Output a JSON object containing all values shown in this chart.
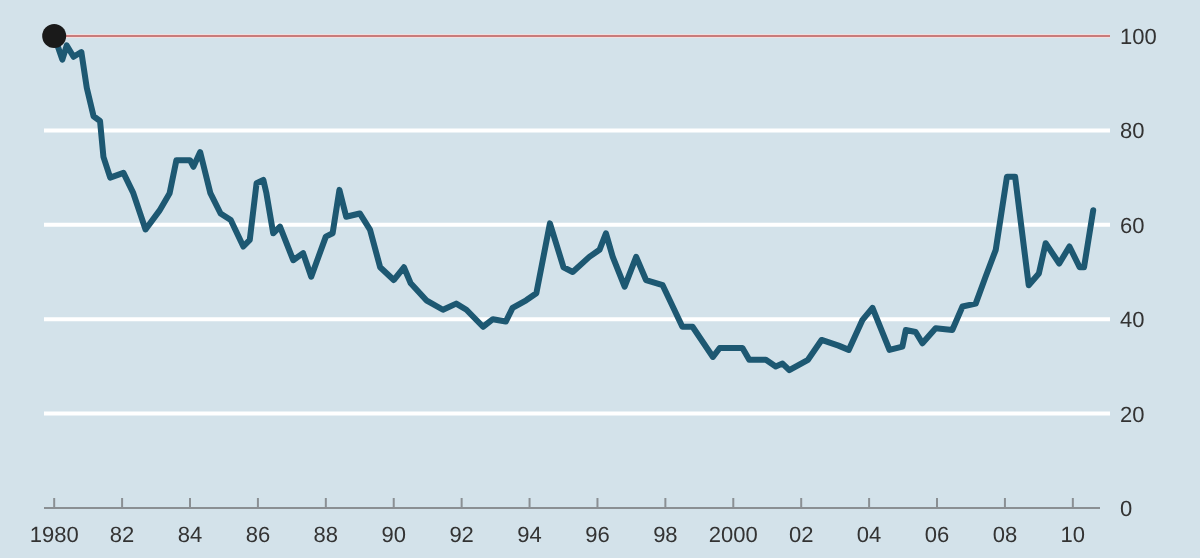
{
  "chart_data": {
    "type": "line",
    "x": [
      1980.0,
      1980.24,
      1980.37,
      1980.57,
      1980.8,
      1980.96,
      1981.16,
      1981.35,
      1981.45,
      1981.65,
      1982.04,
      1982.33,
      1982.69,
      1983.1,
      1983.4,
      1983.6,
      1984.0,
      1984.1,
      1984.3,
      1984.6,
      1984.9,
      1985.2,
      1985.57,
      1985.76,
      1985.96,
      1986.16,
      1986.25,
      1986.45,
      1986.65,
      1987.04,
      1987.33,
      1987.57,
      1988.0,
      1988.2,
      1988.4,
      1988.6,
      1989.0,
      1989.3,
      1989.6,
      1990.0,
      1990.3,
      1990.5,
      1990.96,
      1991.45,
      1991.84,
      1992.14,
      1992.63,
      1992.92,
      1993.3,
      1993.5,
      1993.9,
      1994.2,
      1994.6,
      1995.0,
      1995.27,
      1995.76,
      1996.06,
      1996.25,
      1996.45,
      1996.8,
      1997.14,
      1997.43,
      1997.92,
      1998.5,
      1998.8,
      1999.4,
      1999.6,
      2000.27,
      2000.47,
      2000.96,
      2001.25,
      2001.45,
      2001.65,
      2002.2,
      2002.6,
      2003.1,
      2003.4,
      2003.8,
      2004.1,
      2004.6,
      2004.98,
      2005.08,
      2005.37,
      2005.57,
      2005.96,
      2006.45,
      2006.75,
      2007.14,
      2007.43,
      2007.73,
      2008.06,
      2008.3,
      2008.7,
      2009.0,
      2009.2,
      2009.6,
      2009.9,
      2010.2,
      2010.33,
      2010.6
    ],
    "series": [
      {
        "color": "#1d5872",
        "values": [
          100,
          95,
          98,
          95.6,
          96.6,
          89,
          83,
          82,
          74.4,
          70,
          71,
          66.7,
          59,
          63,
          66.7,
          73.7,
          73.7,
          72.3,
          75.4,
          66.7,
          62.4,
          61,
          55.4,
          56.8,
          68.8,
          69.5,
          66.7,
          58.2,
          59.6,
          52.5,
          54,
          49,
          57.5,
          58.2,
          67.4,
          61.7,
          62.4,
          59,
          51,
          48.3,
          51,
          47.6,
          44,
          42,
          43.3,
          42,
          38.4,
          40,
          39.5,
          42.4,
          44,
          45.5,
          60.3,
          51,
          50,
          53.2,
          54.7,
          58.2,
          53.2,
          46.9,
          53.2,
          48.3,
          47.2,
          38.4,
          38.4,
          32,
          33.9,
          33.9,
          31.4,
          31.4,
          30,
          30.6,
          29.2,
          31.4,
          35.6,
          34.4,
          33.5,
          39.8,
          42.4,
          33.5,
          34.2,
          37.7,
          37.3,
          34.9,
          38.1,
          37.7,
          42.7,
          43.3,
          49,
          54.7,
          70.2,
          70.2,
          47.2,
          49.7,
          56.1,
          51.8,
          55.4,
          51,
          51,
          63.1
        ]
      },
      {
        "type": "scatter",
        "x": [
          1980.0
        ],
        "color": "#1a1a1a",
        "values": [
          100
        ],
        "marker": "circle"
      }
    ],
    "xlim": [
      1979.7,
      2010.8
    ],
    "ylim": [
      0,
      100
    ],
    "xticks": [
      1980,
      {
        "value": 1982,
        "label": "82"
      },
      {
        "value": 1984,
        "label": "84"
      },
      {
        "value": 1986,
        "label": "86"
      },
      {
        "value": 1988,
        "label": "88"
      },
      {
        "value": 1990,
        "label": "90"
      },
      {
        "value": 1992,
        "label": "92"
      },
      {
        "value": 1994,
        "label": "94"
      },
      {
        "value": 1996,
        "label": "96"
      },
      {
        "value": 1998,
        "label": "98"
      },
      2000,
      {
        "value": 2002,
        "label": "02"
      },
      {
        "value": 2004,
        "label": "04"
      },
      {
        "value": 2006,
        "label": "06"
      },
      {
        "value": 2008,
        "label": "08"
      },
      {
        "value": 2010,
        "label": "10"
      }
    ],
    "yticks": [
      0,
      20,
      40,
      60,
      80,
      100
    ],
    "grid": "y",
    "marker": "none",
    "line_style": "solid",
    "ref_lines": [
      {
        "axis": "y",
        "value": 100,
        "color": "#c97b7b"
      }
    ]
  }
}
